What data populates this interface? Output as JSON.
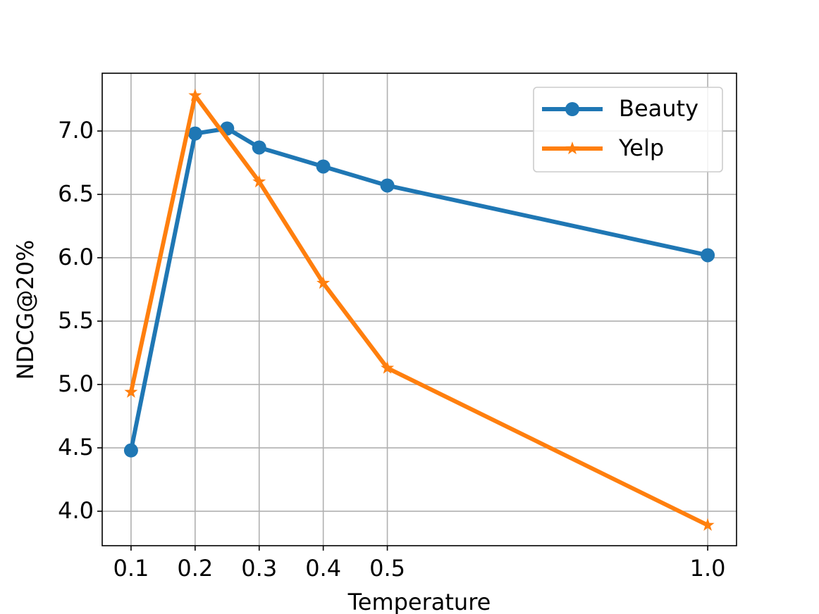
{
  "chart_data": {
    "type": "line",
    "x_label": "Temperature",
    "y_label": "NDCG@20%",
    "series": [
      {
        "name": "Beauty",
        "color": "#1f77b4",
        "marker": "circle",
        "x": [
          0.1,
          0.2,
          0.25,
          0.3,
          0.4,
          0.5,
          1.0
        ],
        "values": [
          4.48,
          6.98,
          7.02,
          6.87,
          6.72,
          6.57,
          6.02
        ]
      },
      {
        "name": "Yelp",
        "color": "#ff7f0e",
        "marker": "star",
        "x": [
          0.1,
          0.2,
          0.3,
          0.4,
          0.5,
          1.0
        ],
        "values": [
          4.94,
          7.28,
          6.6,
          5.8,
          5.13,
          3.89
        ]
      }
    ],
    "xlim": [
      0.055,
      1.045
    ],
    "ylim": [
      3.728,
      7.456
    ],
    "xticks": [
      0.1,
      0.2,
      0.3,
      0.4,
      0.5,
      {
        "value": 1,
        "label": "1.0"
      }
    ],
    "yticks": [
      {
        "value": 4,
        "label": "4.0"
      },
      4.5,
      {
        "value": 5,
        "label": "5.0"
      },
      5.5,
      {
        "value": 6,
        "label": "6.0"
      },
      6.5,
      {
        "value": 7,
        "label": "7.0"
      }
    ],
    "grid": true,
    "legend": "upper right"
  }
}
